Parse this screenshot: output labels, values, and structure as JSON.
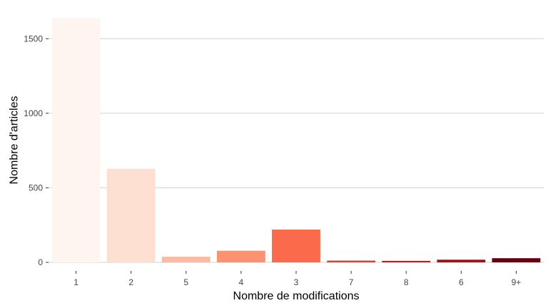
{
  "chart_data": {
    "type": "bar",
    "title": "",
    "xlabel": "Nombre de modifications",
    "ylabel": "Nombre d'articles",
    "categories": [
      "1",
      "2",
      "5",
      "4",
      "3",
      "7",
      "8",
      "6",
      "9+"
    ],
    "values": [
      1640,
      628,
      38,
      78,
      220,
      12,
      10,
      18,
      28
    ],
    "colors": [
      "#fff5f0",
      "#fee0d2",
      "#fcbba1",
      "#fc9272",
      "#fb6a4a",
      "#ef3b2c",
      "#cb181d",
      "#a50f15",
      "#67000d"
    ],
    "ylim": [
      0,
      1640
    ],
    "yticks": [
      0,
      500,
      1000,
      1500
    ],
    "grid": true,
    "legend": "none"
  }
}
